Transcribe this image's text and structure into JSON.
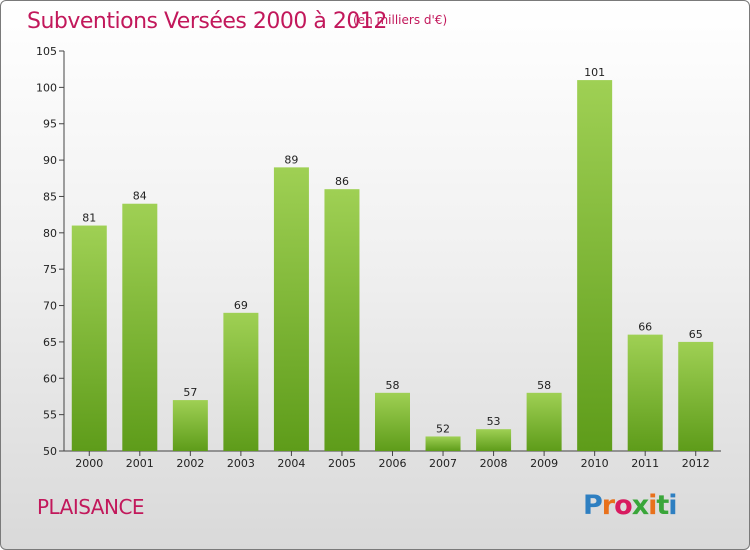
{
  "header": {
    "title": "Subventions Versées 2000 à 2012",
    "subtitle": "(en milliers d'€)"
  },
  "footer": {
    "place": "PLAISANCE",
    "logo": "Proxiti",
    "logo_colors": [
      "#2e7fc1",
      "#e8711c",
      "#3aa63a",
      "#d81b60"
    ]
  },
  "chart_data": {
    "type": "bar",
    "title": "Subventions Versées 2000 à 2012",
    "subtitle": "(en milliers d'€)",
    "categories": [
      "2000",
      "2001",
      "2002",
      "2003",
      "2004",
      "2005",
      "2006",
      "2007",
      "2008",
      "2009",
      "2010",
      "2011",
      "2012"
    ],
    "values": [
      81,
      84,
      57,
      69,
      89,
      86,
      58,
      52,
      53,
      58,
      101,
      66,
      65
    ],
    "ylim": [
      50,
      105
    ],
    "yticks": [
      50,
      55,
      60,
      65,
      70,
      75,
      80,
      85,
      90,
      95,
      100,
      105
    ],
    "grid": false,
    "bar_color_top": "#9fd054",
    "bar_color_bottom": "#5e9c1a"
  }
}
